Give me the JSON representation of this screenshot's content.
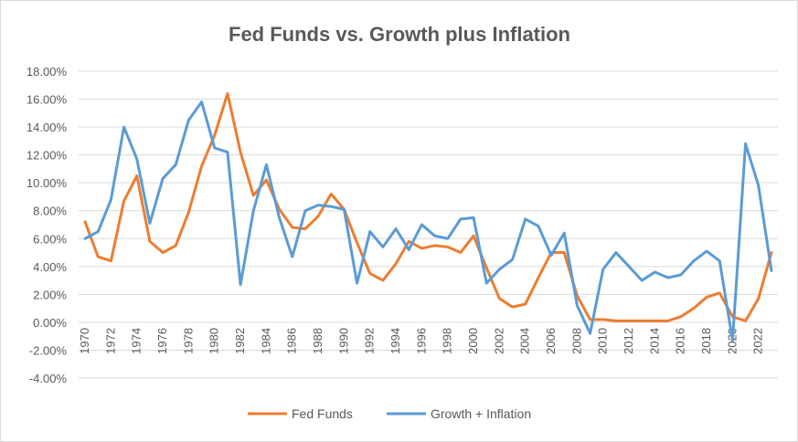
{
  "chart_data": {
    "type": "line",
    "title": "Fed Funds vs. Growth plus Inflation",
    "xlabel": "",
    "ylabel": "",
    "ylim": [
      -4,
      18
    ],
    "y_step": 2,
    "y_tick_labels": [
      "-4.00%",
      "-2.00%",
      "0.00%",
      "2.00%",
      "4.00%",
      "6.00%",
      "8.00%",
      "10.00%",
      "12.00%",
      "14.00%",
      "16.00%",
      "18.00%"
    ],
    "x": [
      1970,
      1971,
      1972,
      1973,
      1974,
      1975,
      1976,
      1977,
      1978,
      1979,
      1980,
      1981,
      1982,
      1983,
      1984,
      1985,
      1986,
      1987,
      1988,
      1989,
      1990,
      1991,
      1992,
      1993,
      1994,
      1995,
      1996,
      1997,
      1998,
      1999,
      2000,
      2001,
      2002,
      2003,
      2004,
      2005,
      2006,
      2007,
      2008,
      2009,
      2010,
      2011,
      2012,
      2013,
      2014,
      2015,
      2016,
      2017,
      2018,
      2019,
      2020,
      2021,
      2022,
      2023
    ],
    "x_tick_labels": [
      "1970",
      "1972",
      "1974",
      "1976",
      "1978",
      "1980",
      "1982",
      "1984",
      "1986",
      "1988",
      "1990",
      "1992",
      "1994",
      "1996",
      "1998",
      "2000",
      "2002",
      "2004",
      "2006",
      "2008",
      "2010",
      "2012",
      "2014",
      "2016",
      "2018",
      "2020",
      "2022"
    ],
    "grid": true,
    "legend_position": "bottom",
    "series": [
      {
        "name": "Fed Funds",
        "color": "#ED7D31",
        "values": [
          7.2,
          4.7,
          4.4,
          8.7,
          10.5,
          5.8,
          5.0,
          5.5,
          7.9,
          11.2,
          13.4,
          16.4,
          12.2,
          9.1,
          10.2,
          8.1,
          6.8,
          6.7,
          7.6,
          9.2,
          8.1,
          5.7,
          3.5,
          3.0,
          4.2,
          5.8,
          5.3,
          5.5,
          5.4,
          5.0,
          6.2,
          3.9,
          1.7,
          1.1,
          1.3,
          3.2,
          5.0,
          5.0,
          1.9,
          0.2,
          0.2,
          0.1,
          0.1,
          0.1,
          0.1,
          0.1,
          0.4,
          1.0,
          1.8,
          2.1,
          0.4,
          0.1,
          1.7,
          5.0
        ]
      },
      {
        "name": "Growth + Inflation",
        "color": "#5B9BD5",
        "values": [
          6.0,
          6.5,
          8.8,
          14.0,
          11.7,
          7.1,
          10.3,
          11.3,
          14.5,
          15.8,
          12.5,
          12.2,
          2.7,
          8.0,
          11.3,
          7.5,
          4.7,
          8.0,
          8.4,
          8.3,
          8.1,
          2.8,
          6.5,
          5.4,
          6.7,
          5.2,
          7.0,
          6.2,
          6.0,
          7.4,
          7.5,
          2.8,
          3.8,
          4.5,
          7.4,
          6.9,
          4.8,
          6.4,
          1.2,
          -0.8,
          3.8,
          5.0,
          4.0,
          3.0,
          3.6,
          3.2,
          3.4,
          4.4,
          5.1,
          4.4,
          -1.3,
          12.8,
          9.8,
          3.7
        ]
      }
    ]
  }
}
